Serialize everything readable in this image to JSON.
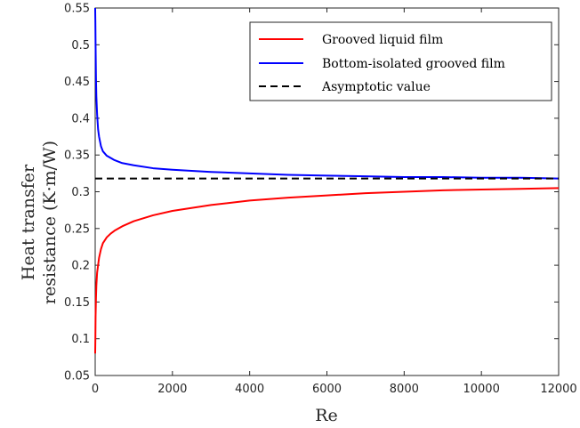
{
  "chart_data": {
    "type": "line",
    "xlabel": "Re",
    "ylabel_lines": [
      "Heat transfer",
      "resistance (K·m/W)"
    ],
    "xlim": [
      0,
      12000
    ],
    "ylim": [
      0.05,
      0.55
    ],
    "xticks": [
      0,
      2000,
      4000,
      6000,
      8000,
      10000,
      12000
    ],
    "yticks": [
      0.05,
      0.1,
      0.15,
      0.2,
      0.25,
      0.3,
      0.35,
      0.4,
      0.45,
      0.5,
      0.55
    ],
    "grid": false,
    "legend_position": "top-right",
    "series": [
      {
        "name": "Grooved liquid film",
        "color": "#ff0000",
        "dash": "solid",
        "x": [
          0,
          5,
          10,
          20,
          30,
          50,
          75,
          100,
          150,
          200,
          300,
          400,
          500,
          700,
          1000,
          1500,
          2000,
          3000,
          4000,
          5000,
          6000,
          7000,
          8000,
          9000,
          10000,
          11000,
          12000
        ],
        "y": [
          0.08,
          0.1,
          0.13,
          0.155,
          0.172,
          0.19,
          0.2,
          0.21,
          0.222,
          0.23,
          0.238,
          0.243,
          0.247,
          0.253,
          0.26,
          0.268,
          0.274,
          0.282,
          0.288,
          0.292,
          0.295,
          0.298,
          0.3,
          0.302,
          0.303,
          0.304,
          0.305
        ]
      },
      {
        "name": "Bottom-isolated grooved film",
        "color": "#0000ff",
        "dash": "solid",
        "x": [
          0,
          5,
          10,
          20,
          30,
          50,
          75,
          100,
          150,
          200,
          300,
          500,
          700,
          1000,
          1500,
          2000,
          3000,
          4000,
          5000,
          6000,
          7000,
          8000,
          9000,
          10000,
          11000,
          12000
        ],
        "y": [
          0.55,
          0.53,
          0.5,
          0.455,
          0.43,
          0.405,
          0.385,
          0.375,
          0.362,
          0.355,
          0.349,
          0.343,
          0.339,
          0.336,
          0.332,
          0.33,
          0.327,
          0.325,
          0.323,
          0.322,
          0.321,
          0.32,
          0.32,
          0.319,
          0.319,
          0.318
        ]
      },
      {
        "name": "Asymptotic value",
        "color": "#000000",
        "dash": "dashed",
        "x": [
          0,
          12000
        ],
        "y": [
          0.318,
          0.318
        ]
      }
    ]
  }
}
